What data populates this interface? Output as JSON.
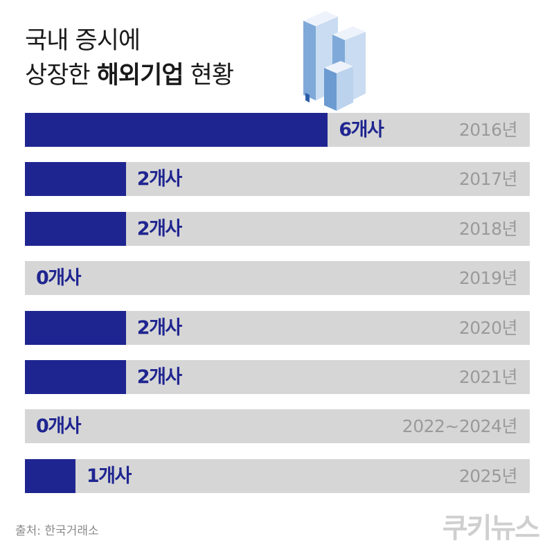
{
  "title": {
    "line1": "국내 증시에",
    "line2_prefix": "상장한 ",
    "line2_bold": "해외기업",
    "line2_suffix": " 현황"
  },
  "chart_data": {
    "type": "bar",
    "orientation": "horizontal",
    "categories": [
      "2016년",
      "2017년",
      "2018년",
      "2019년",
      "2020년",
      "2021년",
      "2022~2024년",
      "2025년"
    ],
    "values": [
      6,
      2,
      2,
      0,
      2,
      2,
      0,
      1
    ],
    "value_labels": [
      "6개사",
      "2개사",
      "2개사",
      "0개사",
      "2개사",
      "2개사",
      "0개사",
      "1개사"
    ],
    "xlim": [
      0,
      10
    ],
    "colors": {
      "bar": "#1f2590",
      "track": "#d6d6d6",
      "year_text": "#9a9a9a"
    }
  },
  "footer": {
    "source": "출처: 한국거래소",
    "logo": "쿠키뉴스"
  }
}
